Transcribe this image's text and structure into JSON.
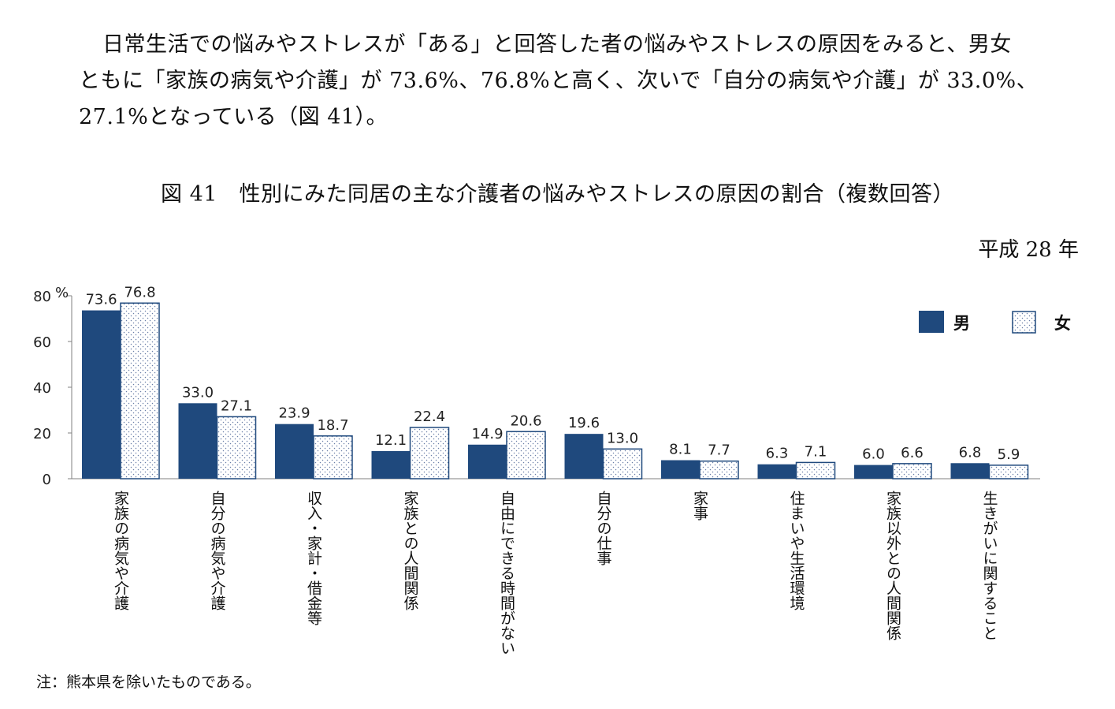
{
  "paragraph": {
    "line1": "日常生活での悩みやストレスが「ある」と回答した者の悩みやストレスの原因をみると、男女",
    "line2": "ともに「家族の病気や介護」が 73.6%、76.8%と高く、次いで「自分の病気や介護」が 33.0%、",
    "line3": "27.1%となっている（図 41）。"
  },
  "figure_title": "図 41　性別にみた同居の主な介護者の悩みやストレスの原因の割合（複数回答）",
  "year_label": "平成 28 年",
  "note": "注：熊本県を除いたものである。",
  "colors": {
    "male": "#1f497d",
    "female_fill": "#ffffff",
    "female_dots": "#6b7fa8",
    "axis": "#808080"
  },
  "chart_data": {
    "type": "bar",
    "unit": "%",
    "ylim": [
      0,
      80
    ],
    "yticks": [
      0,
      20,
      40,
      60,
      80
    ],
    "legend_position": "top-right",
    "categories": [
      "家族の病気や介護",
      "自分の病気や介護",
      "収入・家計・借金等",
      "家族との人間関係",
      "自由にできる時間がない",
      "自分の仕事",
      "家事",
      "住まいや生活環境",
      "家族以外との人間関係",
      "生きがいに関すること"
    ],
    "series": [
      {
        "name": "男",
        "values": [
          73.6,
          33.0,
          23.9,
          12.1,
          14.9,
          19.6,
          8.1,
          6.3,
          6.0,
          6.8
        ]
      },
      {
        "name": "女",
        "values": [
          76.8,
          27.1,
          18.7,
          22.4,
          20.6,
          13.0,
          7.7,
          7.1,
          6.6,
          5.9
        ]
      }
    ]
  }
}
